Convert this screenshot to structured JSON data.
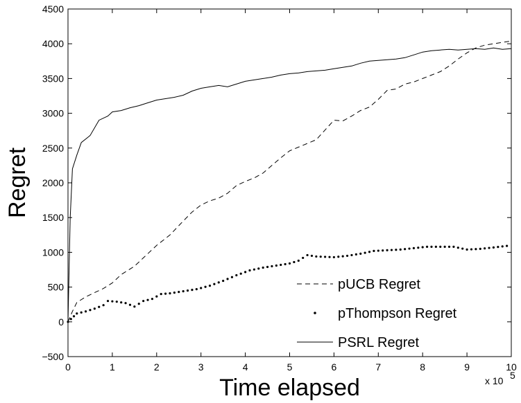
{
  "chart_data": {
    "type": "line",
    "title": "",
    "xlabel": "Time elapsed",
    "ylabel": "Regret",
    "x_multiplier_label": "x 10",
    "x_multiplier_exponent": "5",
    "xlim": [
      0,
      10
    ],
    "ylim": [
      -500,
      4500
    ],
    "xticks": [
      "0",
      "1",
      "2",
      "3",
      "4",
      "5",
      "6",
      "7",
      "8",
      "9",
      "10"
    ],
    "yticks": [
      "−500",
      "0",
      "500",
      "1000",
      "1500",
      "2000",
      "2500",
      "3000",
      "3500",
      "4000",
      "4500"
    ],
    "grid": false,
    "legend_position": "bottom-right",
    "series": [
      {
        "name": "pUCB Regret",
        "style": "dashed",
        "x": [
          0,
          0.1,
          0.2,
          0.4,
          0.6,
          0.8,
          1.0,
          1.2,
          1.5,
          1.8,
          2.0,
          2.3,
          2.6,
          2.8,
          3.0,
          3.2,
          3.4,
          3.6,
          3.8,
          4.0,
          4.2,
          4.4,
          4.6,
          4.8,
          5.0,
          5.3,
          5.6,
          5.8,
          6.0,
          6.2,
          6.4,
          6.6,
          6.8,
          7.0,
          7.2,
          7.4,
          7.6,
          7.8,
          8.0,
          8.2,
          8.4,
          8.6,
          8.8,
          9.0,
          9.2,
          9.4,
          9.6,
          9.8,
          10.0
        ],
        "y": [
          0,
          150,
          280,
          360,
          420,
          480,
          560,
          680,
          800,
          980,
          1100,
          1250,
          1450,
          1580,
          1680,
          1740,
          1780,
          1850,
          1960,
          2020,
          2070,
          2140,
          2250,
          2360,
          2460,
          2540,
          2620,
          2760,
          2900,
          2890,
          2960,
          3040,
          3090,
          3200,
          3330,
          3350,
          3420,
          3450,
          3500,
          3550,
          3600,
          3680,
          3780,
          3870,
          3940,
          3980,
          4000,
          4020,
          4040
        ]
      },
      {
        "name": "pThompson Regret",
        "style": "dotted",
        "x": [
          0,
          0.2,
          0.4,
          0.6,
          0.8,
          0.9,
          1.1,
          1.3,
          1.5,
          1.7,
          1.9,
          2.1,
          2.3,
          2.6,
          2.9,
          3.2,
          3.5,
          3.8,
          4.1,
          4.4,
          4.7,
          5.0,
          5.2,
          5.4,
          5.6,
          6.0,
          6.3,
          6.6,
          6.9,
          7.2,
          7.5,
          7.8,
          8.1,
          8.4,
          8.7,
          9.0,
          9.3,
          9.6,
          10.0
        ],
        "y": [
          0,
          120,
          150,
          190,
          240,
          300,
          290,
          270,
          220,
          300,
          330,
          400,
          410,
          440,
          470,
          520,
          590,
          670,
          740,
          780,
          810,
          840,
          880,
          960,
          940,
          930,
          950,
          980,
          1020,
          1030,
          1040,
          1060,
          1080,
          1080,
          1080,
          1040,
          1050,
          1070,
          1100
        ]
      },
      {
        "name": "PSRL Regret",
        "style": "solid",
        "x": [
          0,
          0.05,
          0.1,
          0.2,
          0.3,
          0.5,
          0.7,
          0.9,
          1.0,
          1.2,
          1.4,
          1.6,
          1.8,
          2.0,
          2.2,
          2.4,
          2.6,
          2.8,
          3.0,
          3.2,
          3.4,
          3.6,
          3.8,
          4.0,
          4.2,
          4.4,
          4.6,
          4.8,
          5.0,
          5.2,
          5.4,
          5.6,
          5.8,
          6.0,
          6.2,
          6.4,
          6.6,
          6.8,
          7.0,
          7.2,
          7.4,
          7.6,
          7.8,
          8.0,
          8.2,
          8.4,
          8.6,
          8.8,
          9.0,
          9.2,
          9.4,
          9.6,
          9.8,
          10.0
        ],
        "y": [
          0,
          1500,
          2200,
          2400,
          2580,
          2680,
          2900,
          2960,
          3020,
          3040,
          3080,
          3110,
          3150,
          3190,
          3210,
          3230,
          3260,
          3320,
          3360,
          3380,
          3400,
          3380,
          3420,
          3460,
          3480,
          3500,
          3520,
          3550,
          3570,
          3580,
          3600,
          3610,
          3620,
          3640,
          3660,
          3680,
          3720,
          3750,
          3760,
          3770,
          3780,
          3800,
          3840,
          3880,
          3900,
          3910,
          3920,
          3910,
          3920,
          3930,
          3920,
          3940,
          3920,
          3930
        ]
      }
    ]
  }
}
